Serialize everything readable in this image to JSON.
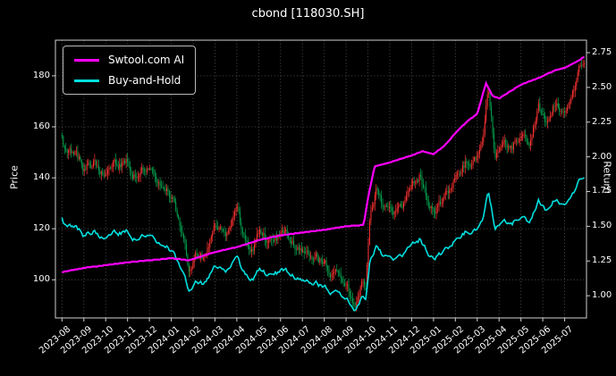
{
  "title": "cbond [118030.SH]",
  "chart_data": {
    "type": "candlestick+line",
    "title": "cbond [118030.SH]",
    "background": "#000000",
    "grid": true,
    "t_unit": "months since 2023-08",
    "x_tick_labels": [
      "2023-08",
      "2023-09",
      "2023-10",
      "2023-11",
      "2023-12",
      "2024-01",
      "2024-02",
      "2024-03",
      "2024-04",
      "2024-05",
      "2024-06",
      "2024-07",
      "2024-08",
      "2024-09",
      "2024-10",
      "2024-11",
      "2024-12",
      "2025-01",
      "2025-02",
      "2025-03",
      "2025-04",
      "2025-05",
      "2025-06",
      "2025-07"
    ],
    "left_axis": {
      "label": "Price",
      "ticks": [
        100,
        120,
        140,
        160,
        180
      ],
      "lim": [
        85,
        194
      ]
    },
    "right_axis": {
      "label": "Return",
      "ticks": [
        1.0,
        1.25,
        1.5,
        1.75,
        2.0,
        2.25,
        2.5,
        2.75
      ],
      "lim": [
        0.84,
        2.84
      ]
    },
    "legend": [
      {
        "label": "Swtool.com AI",
        "color": "#ff00ff"
      },
      {
        "label": "Buy-and-Hold",
        "color": "#00e0e0"
      }
    ],
    "candle_up_color": "#ff3333",
    "candle_down_color": "#00a550",
    "price_anchors": [
      [
        0,
        155
      ],
      [
        0.2,
        148
      ],
      [
        0.6,
        150
      ],
      [
        1,
        143
      ],
      [
        1.5,
        147
      ],
      [
        2,
        139
      ],
      [
        2.5,
        143
      ],
      [
        3,
        146
      ],
      [
        3.5,
        141
      ],
      [
        4,
        144
      ],
      [
        4.5,
        138
      ],
      [
        5,
        133
      ],
      [
        5.4,
        122
      ],
      [
        5.8,
        104
      ],
      [
        6.1,
        112
      ],
      [
        6.5,
        108
      ],
      [
        7,
        121
      ],
      [
        7.5,
        118
      ],
      [
        8,
        125
      ],
      [
        8.3,
        113
      ],
      [
        8.7,
        110
      ],
      [
        9,
        117
      ],
      [
        9.5,
        113
      ],
      [
        10,
        116
      ],
      [
        10.5,
        112
      ],
      [
        11,
        110
      ],
      [
        11.5,
        107
      ],
      [
        12,
        106
      ],
      [
        12.5,
        101
      ],
      [
        13,
        97
      ],
      [
        13.4,
        92
      ],
      [
        13.7,
        99
      ],
      [
        13.9,
        96
      ],
      [
        14.1,
        126
      ],
      [
        14.4,
        137
      ],
      [
        14.7,
        128
      ],
      [
        15,
        132
      ],
      [
        15.5,
        128
      ],
      [
        16,
        136
      ],
      [
        16.4,
        142
      ],
      [
        16.8,
        131
      ],
      [
        17,
        128
      ],
      [
        17.5,
        132
      ],
      [
        18,
        140
      ],
      [
        18.5,
        147
      ],
      [
        19,
        151
      ],
      [
        19.3,
        160
      ],
      [
        19.5,
        174
      ],
      [
        19.8,
        148
      ],
      [
        20.2,
        152
      ],
      [
        20.6,
        147
      ],
      [
        21,
        157
      ],
      [
        21.4,
        152
      ],
      [
        21.8,
        166
      ],
      [
        22.2,
        160
      ],
      [
        22.6,
        170
      ],
      [
        23,
        166
      ],
      [
        23.4,
        176
      ],
      [
        23.7,
        183
      ],
      [
        23.9,
        181
      ]
    ],
    "ai_return_anchors": [
      [
        0,
        1.17
      ],
      [
        1,
        1.2
      ],
      [
        2,
        1.22
      ],
      [
        3,
        1.24
      ],
      [
        4,
        1.255
      ],
      [
        5,
        1.27
      ],
      [
        5.8,
        1.255
      ],
      [
        6.5,
        1.29
      ],
      [
        7,
        1.315
      ],
      [
        8,
        1.35
      ],
      [
        9,
        1.4
      ],
      [
        10,
        1.435
      ],
      [
        11,
        1.455
      ],
      [
        12,
        1.475
      ],
      [
        13,
        1.5
      ],
      [
        13.8,
        1.51
      ],
      [
        14,
        1.7
      ],
      [
        14.3,
        1.93
      ],
      [
        15,
        1.96
      ],
      [
        16,
        2.01
      ],
      [
        16.5,
        2.04
      ],
      [
        17,
        2.02
      ],
      [
        17.5,
        2.08
      ],
      [
        18,
        2.17
      ],
      [
        18.5,
        2.25
      ],
      [
        19,
        2.31
      ],
      [
        19.4,
        2.53
      ],
      [
        19.7,
        2.44
      ],
      [
        20,
        2.42
      ],
      [
        20.5,
        2.47
      ],
      [
        21,
        2.52
      ],
      [
        21.5,
        2.55
      ],
      [
        22,
        2.58
      ],
      [
        22.5,
        2.62
      ],
      [
        23,
        2.64
      ],
      [
        23.5,
        2.68
      ],
      [
        23.9,
        2.72
      ]
    ],
    "buy_hold_return_anchors": [
      [
        0,
        1.55
      ],
      [
        0.2,
        1.48
      ],
      [
        0.6,
        1.5
      ],
      [
        1,
        1.43
      ],
      [
        1.5,
        1.47
      ],
      [
        2,
        1.39
      ],
      [
        2.5,
        1.43
      ],
      [
        3,
        1.46
      ],
      [
        3.5,
        1.41
      ],
      [
        4,
        1.44
      ],
      [
        4.5,
        1.38
      ],
      [
        5,
        1.33
      ],
      [
        5.4,
        1.22
      ],
      [
        5.8,
        1.04
      ],
      [
        6.1,
        1.12
      ],
      [
        6.5,
        1.08
      ],
      [
        7,
        1.21
      ],
      [
        7.5,
        1.18
      ],
      [
        8,
        1.25
      ],
      [
        8.3,
        1.13
      ],
      [
        8.7,
        1.1
      ],
      [
        9,
        1.17
      ],
      [
        9.5,
        1.13
      ],
      [
        10,
        1.16
      ],
      [
        10.5,
        1.12
      ],
      [
        11,
        1.1
      ],
      [
        11.5,
        1.07
      ],
      [
        12,
        1.06
      ],
      [
        12.5,
        1.01
      ],
      [
        13,
        0.97
      ],
      [
        13.4,
        0.92
      ],
      [
        13.7,
        0.99
      ],
      [
        13.9,
        0.96
      ],
      [
        14.1,
        1.26
      ],
      [
        14.4,
        1.37
      ],
      [
        14.7,
        1.28
      ],
      [
        15,
        1.32
      ],
      [
        15.5,
        1.28
      ],
      [
        16,
        1.36
      ],
      [
        16.4,
        1.42
      ],
      [
        16.8,
        1.31
      ],
      [
        17,
        1.28
      ],
      [
        17.5,
        1.32
      ],
      [
        18,
        1.4
      ],
      [
        18.5,
        1.47
      ],
      [
        19,
        1.51
      ],
      [
        19.3,
        1.6
      ],
      [
        19.5,
        1.74
      ],
      [
        19.8,
        1.48
      ],
      [
        20.2,
        1.52
      ],
      [
        20.6,
        1.47
      ],
      [
        21,
        1.57
      ],
      [
        21.4,
        1.52
      ],
      [
        21.8,
        1.66
      ],
      [
        22.2,
        1.6
      ],
      [
        22.6,
        1.7
      ],
      [
        23,
        1.66
      ],
      [
        23.4,
        1.76
      ],
      [
        23.7,
        1.83
      ],
      [
        23.9,
        1.81
      ]
    ]
  }
}
